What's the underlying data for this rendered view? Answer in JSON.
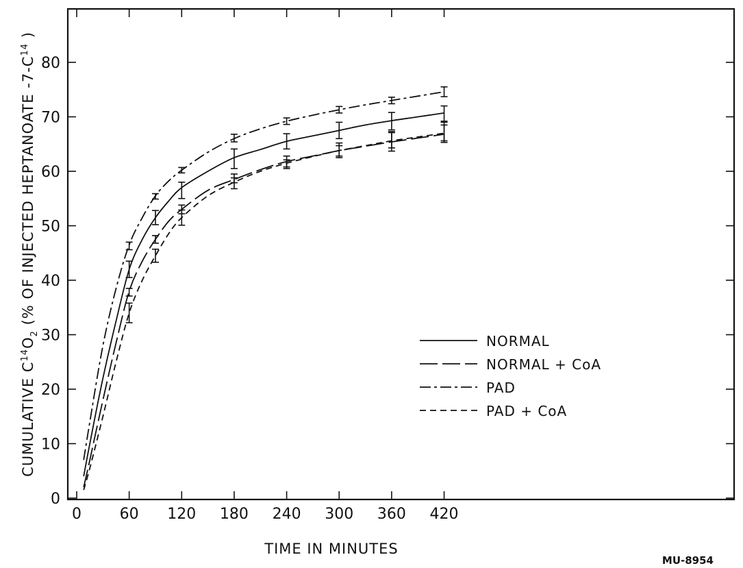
{
  "chart_data": {
    "type": "line",
    "title": "",
    "xlabel": "TIME IN MINUTES",
    "ylabel": {
      "part1": "CUMULATIVE  C",
      "sup1": "14",
      "part2": "O",
      "sub": "2",
      "part3": " (% OF INJECTED HEPTANOATE -7-C",
      "sup2": "14",
      "part4": " )"
    },
    "xlim": [
      0,
      480
    ],
    "ylim": [
      0,
      90
    ],
    "xticks": [
      0,
      60,
      120,
      180,
      240,
      300,
      360,
      420
    ],
    "yticks": [
      0,
      10,
      20,
      30,
      40,
      50,
      60,
      70,
      80
    ],
    "grid": false,
    "legend": "center-right",
    "series": [
      {
        "name": "NORMAL",
        "style": "solid",
        "x": [
          8,
          15,
          30,
          45,
          60,
          75,
          90,
          105,
          120,
          150,
          180,
          210,
          240,
          270,
          300,
          330,
          360,
          390,
          420
        ],
        "y": [
          4,
          10,
          22,
          32.5,
          42,
          47.5,
          51.5,
          54.5,
          57,
          60,
          62.5,
          64,
          65.5,
          66.5,
          67.5,
          68.5,
          69.3,
          70,
          70.7
        ],
        "error_bars": [
          {
            "x": 60,
            "y": 42,
            "err": 1.5
          },
          {
            "x": 90,
            "y": 51.5,
            "err": 1.3
          },
          {
            "x": 120,
            "y": 56.5,
            "err": 1.5
          },
          {
            "x": 180,
            "y": 62.3,
            "err": 1.8
          },
          {
            "x": 240,
            "y": 65.5,
            "err": 1.4
          },
          {
            "x": 300,
            "y": 67.5,
            "err": 1.5
          },
          {
            "x": 360,
            "y": 69.2,
            "err": 1.6
          },
          {
            "x": 420,
            "y": 70.6,
            "err": 1.4
          }
        ]
      },
      {
        "name": "NORMAL + CoA",
        "style": "longdash",
        "x": [
          8,
          15,
          30,
          45,
          60,
          75,
          90,
          105,
          120,
          150,
          180,
          210,
          240,
          270,
          300,
          330,
          360,
          390,
          420
        ],
        "y": [
          2,
          7,
          18,
          28.5,
          38,
          43.5,
          47.5,
          50.8,
          53,
          56.5,
          58.5,
          60.3,
          61.8,
          62.8,
          63.8,
          64.6,
          65.4,
          66.1,
          66.8
        ],
        "error_bars": [
          {
            "x": 60,
            "y": 37.8,
            "err": 0.7
          },
          {
            "x": 90,
            "y": 47.5,
            "err": 0.7
          },
          {
            "x": 120,
            "y": 53,
            "err": 0.8
          },
          {
            "x": 180,
            "y": 58.7,
            "err": 0.8
          },
          {
            "x": 240,
            "y": 61.8,
            "err": 1.0
          },
          {
            "x": 300,
            "y": 64,
            "err": 1.2
          },
          {
            "x": 360,
            "y": 65.8,
            "err": 1.5
          },
          {
            "x": 420,
            "y": 67.3,
            "err": 1.7
          }
        ]
      },
      {
        "name": "PAD",
        "style": "dashdot",
        "x": [
          8,
          15,
          30,
          45,
          60,
          75,
          90,
          105,
          120,
          150,
          180,
          210,
          240,
          270,
          300,
          330,
          360,
          390,
          420
        ],
        "y": [
          7,
          14,
          28,
          38.5,
          46.5,
          51.5,
          55.5,
          58.2,
          60.2,
          63.5,
          66,
          67.8,
          69.2,
          70.3,
          71.3,
          72.2,
          73,
          73.8,
          74.6
        ],
        "error_bars": [
          {
            "x": 60,
            "y": 46.3,
            "err": 0.7
          },
          {
            "x": 90,
            "y": 55.4,
            "err": 0.5
          },
          {
            "x": 120,
            "y": 60.2,
            "err": 0.5
          },
          {
            "x": 180,
            "y": 66.1,
            "err": 0.7
          },
          {
            "x": 240,
            "y": 69.2,
            "err": 0.6
          },
          {
            "x": 300,
            "y": 71.3,
            "err": 0.6
          },
          {
            "x": 360,
            "y": 73,
            "err": 0.6
          },
          {
            "x": 420,
            "y": 74.6,
            "err": 0.9
          }
        ]
      },
      {
        "name": "PAD + CoA",
        "style": "shortdash",
        "x": [
          8,
          15,
          30,
          45,
          60,
          75,
          90,
          105,
          120,
          150,
          180,
          210,
          240,
          270,
          300,
          330,
          360,
          390,
          420
        ],
        "y": [
          1.5,
          5.5,
          15,
          25,
          34,
          40,
          44.5,
          48.5,
          51.5,
          55.5,
          58,
          60,
          61.5,
          62.7,
          63.8,
          64.7,
          65.6,
          66.3,
          67
        ],
        "error_bars": [
          {
            "x": 60,
            "y": 34,
            "err": 1.8
          },
          {
            "x": 90,
            "y": 44.5,
            "err": 1.2
          },
          {
            "x": 120,
            "y": 51.5,
            "err": 1.4
          },
          {
            "x": 180,
            "y": 57.8,
            "err": 1.0
          },
          {
            "x": 240,
            "y": 61.3,
            "err": 0.8
          },
          {
            "x": 300,
            "y": 63.6,
            "err": 1.1
          },
          {
            "x": 360,
            "y": 65.4,
            "err": 1.7
          },
          {
            "x": 420,
            "y": 66.9,
            "err": 1.6
          }
        ]
      }
    ]
  },
  "figure_id": "MU-8954"
}
